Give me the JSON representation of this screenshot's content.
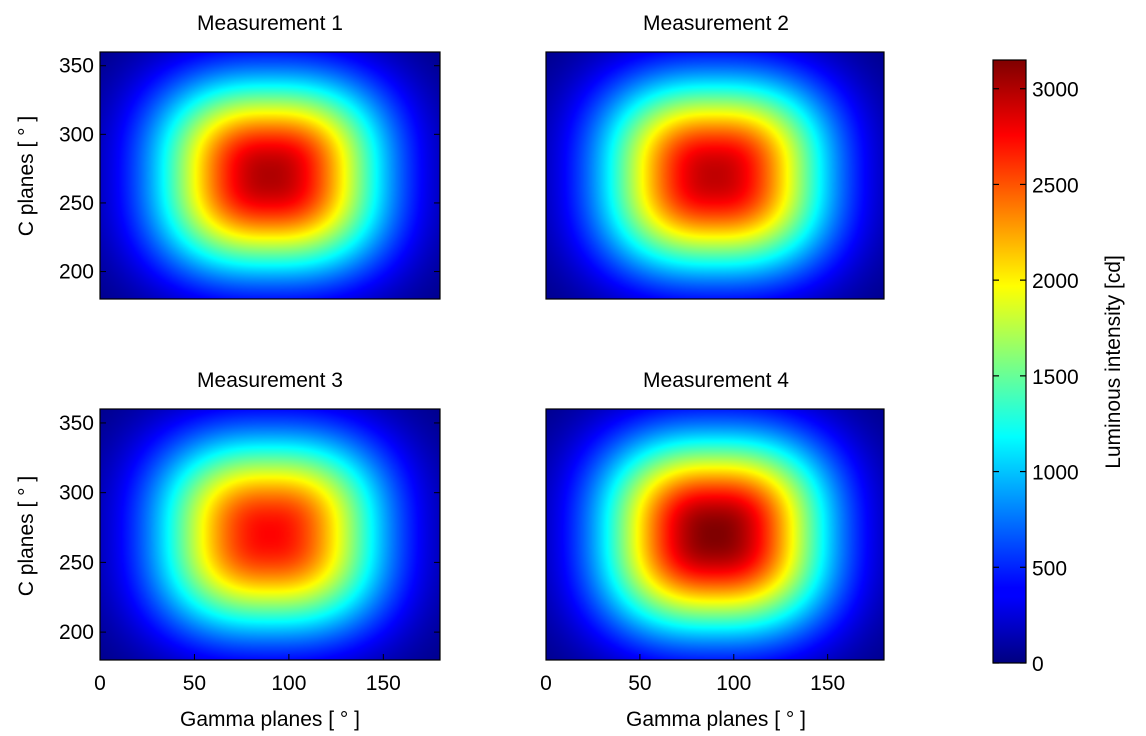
{
  "chart_data": {
    "type": "heatmap",
    "colormap": "jet",
    "panels": [
      {
        "title": "Measurement 1",
        "xlabel": "",
        "ylabel": "C planes [ ° ]",
        "xlim": [
          0,
          180
        ],
        "ylim": [
          180,
          360
        ],
        "xticks": [],
        "yticks": [
          200,
          250,
          300,
          350
        ],
        "peak": {
          "x": 90,
          "y": 270,
          "value": 3000
        },
        "spread": {
          "gamma": 62,
          "c": 72
        }
      },
      {
        "title": "Measurement 2",
        "xlabel": "",
        "ylabel": "",
        "xlim": [
          0,
          180
        ],
        "ylim": [
          180,
          360
        ],
        "xticks": [],
        "yticks": [],
        "peak": {
          "x": 90,
          "y": 270,
          "value": 2950
        },
        "spread": {
          "gamma": 62,
          "c": 72
        }
      },
      {
        "title": "Measurement 3",
        "xlabel": "Gamma planes [ ° ]",
        "ylabel": "C planes [ ° ]",
        "xlim": [
          0,
          180
        ],
        "ylim": [
          180,
          360
        ],
        "xticks": [
          0,
          50,
          100,
          150
        ],
        "yticks": [
          200,
          250,
          300,
          350
        ],
        "peak": {
          "x": 90,
          "y": 270,
          "value": 2750
        },
        "spread": {
          "gamma": 62,
          "c": 72
        }
      },
      {
        "title": "Measurement 4",
        "xlabel": "Gamma planes [ ° ]",
        "ylabel": "",
        "xlim": [
          0,
          180
        ],
        "ylim": [
          180,
          360
        ],
        "xticks": [
          0,
          50,
          100,
          150
        ],
        "yticks": [],
        "peak": {
          "x": 90,
          "y": 270,
          "value": 3150
        },
        "spread": {
          "gamma": 62,
          "c": 72
        }
      }
    ],
    "colorbar": {
      "label": "Luminous intensity [cd]",
      "range": [
        0,
        3150
      ],
      "ticks": [
        0,
        500,
        1000,
        1500,
        2000,
        2500,
        3000
      ]
    }
  }
}
